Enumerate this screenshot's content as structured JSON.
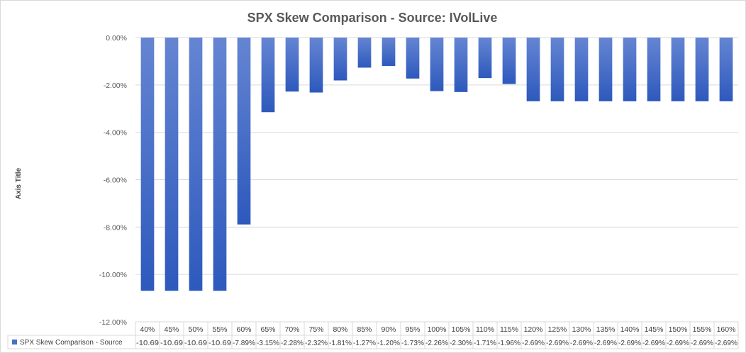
{
  "chart_data": {
    "type": "bar",
    "title": "SPX Skew Comparison  - Source: IVolLive",
    "ylabel": "Axis Title",
    "xlabel": "",
    "ylim": [
      -12,
      0
    ],
    "yticks": [
      0,
      -2,
      -4,
      -6,
      -8,
      -10,
      -12
    ],
    "ytick_labels": [
      "0.00%",
      "-2.00%",
      "-4.00%",
      "-6.00%",
      "-8.00%",
      "-10.00%",
      "-12.00%"
    ],
    "grid": true,
    "legend_placement": "bottom-left (data table)",
    "categories": [
      "40%",
      "45%",
      "50%",
      "55%",
      "60%",
      "65%",
      "70%",
      "75%",
      "80%",
      "85%",
      "90%",
      "95%",
      "100%",
      "105%",
      "110%",
      "115%",
      "120%",
      "125%",
      "130%",
      "135%",
      "140%",
      "145%",
      "150%",
      "155%",
      "160%"
    ],
    "series": [
      {
        "name": "SPX Skew Comparison - Source",
        "color": "#4472c4",
        "values": [
          -10.69,
          -10.69,
          -10.69,
          -10.69,
          -7.89,
          -3.15,
          -2.28,
          -2.32,
          -1.81,
          -1.27,
          -1.2,
          -1.73,
          -2.26,
          -2.3,
          -1.71,
          -1.96,
          -2.69,
          -2.69,
          -2.69,
          -2.69,
          -2.69,
          -2.69,
          -2.69,
          -2.69,
          -2.69
        ],
        "value_labels": [
          "-10.69",
          "-10.69",
          "-10.69",
          "-10.69",
          "-7.89%",
          "-3.15%",
          "-2.28%",
          "-2.32%",
          "-1.81%",
          "-1.27%",
          "-1.20%",
          "-1.73%",
          "-2.26%",
          "-2.30%",
          "-1.71%",
          "-1.96%",
          "-2.69%",
          "-2.69%",
          "-2.69%",
          "-2.69%",
          "-2.69%",
          "-2.69%",
          "-2.69%",
          "-2.69%",
          "-2.69%"
        ]
      }
    ]
  }
}
